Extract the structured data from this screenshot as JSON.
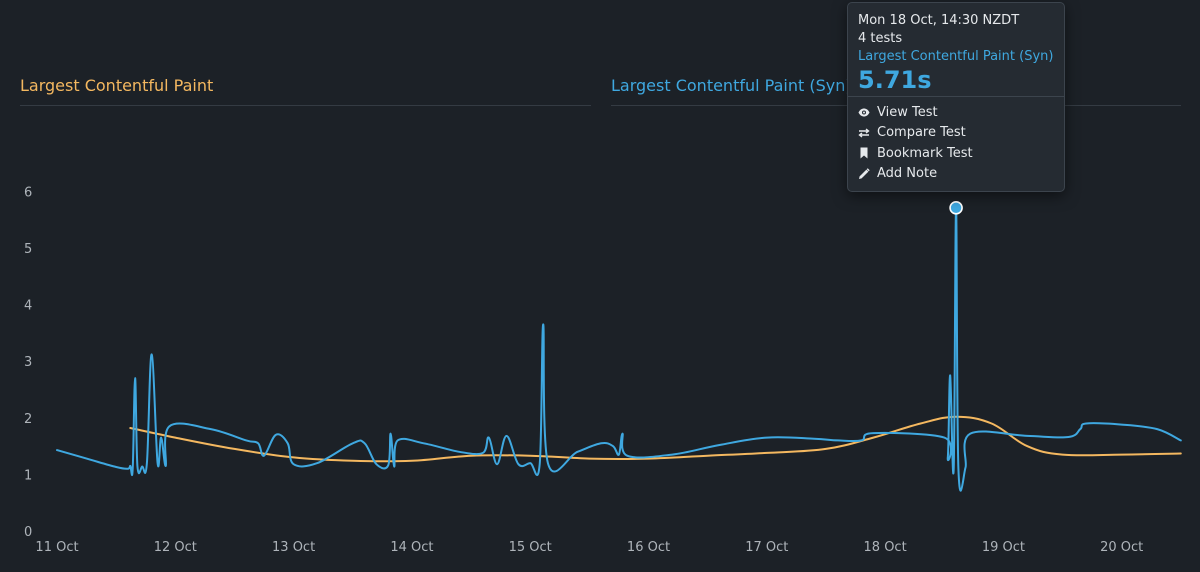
{
  "panels": {
    "left_title": "Largest Contentful Paint",
    "right_title": "Largest Contentful Paint (Syn)"
  },
  "tooltip": {
    "date": "Mon 18 Oct, 14:30 NZDT",
    "tests": "4 tests",
    "metric": "Largest Contentful Paint (Syn)",
    "value": "5.71s",
    "menu": {
      "view": "View Test",
      "compare": "Compare Test",
      "bookmark": "Bookmark Test",
      "note": "Add Note"
    }
  },
  "colors": {
    "synthetic": "#3fa8e0",
    "rum": "#f4b860",
    "grid": "#343b43"
  },
  "icons": {
    "view": "eye-icon",
    "compare": "swap-arrows-icon",
    "bookmark": "bookmark-icon",
    "note": "pencil-icon"
  },
  "chart_data": {
    "type": "line",
    "xlabel": "",
    "ylabel": "",
    "ylim": [
      0,
      7
    ],
    "yticks": [
      0,
      1,
      2,
      3,
      4,
      5,
      6
    ],
    "xticks": [
      "11 Oct",
      "12 Oct",
      "13 Oct",
      "14 Oct",
      "15 Oct",
      "16 Oct",
      "17 Oct",
      "18 Oct",
      "19 Oct",
      "20 Oct"
    ],
    "x_unit": "days since 11 Oct",
    "grid": false,
    "highlight": {
      "x": 7.6,
      "y": 5.71
    },
    "series": [
      {
        "name": "Largest Contentful Paint (Syn)",
        "color": "#3fa8e0",
        "points": [
          [
            0.0,
            1.43
          ],
          [
            0.25,
            1.28
          ],
          [
            0.5,
            1.13
          ],
          [
            0.6,
            1.1
          ],
          [
            0.62,
            1.15
          ],
          [
            0.64,
            1.1
          ],
          [
            0.66,
            2.7
          ],
          [
            0.68,
            1.15
          ],
          [
            0.72,
            1.14
          ],
          [
            0.76,
            1.2
          ],
          [
            0.8,
            3.12
          ],
          [
            0.85,
            1.2
          ],
          [
            0.88,
            1.65
          ],
          [
            0.92,
            1.15
          ],
          [
            0.95,
            1.85
          ],
          [
            1.3,
            1.8
          ],
          [
            1.6,
            1.6
          ],
          [
            1.7,
            1.55
          ],
          [
            1.75,
            1.33
          ],
          [
            1.85,
            1.7
          ],
          [
            1.95,
            1.55
          ],
          [
            2.0,
            1.18
          ],
          [
            2.2,
            1.2
          ],
          [
            2.5,
            1.55
          ],
          [
            2.6,
            1.55
          ],
          [
            2.7,
            1.18
          ],
          [
            2.8,
            1.16
          ],
          [
            2.82,
            1.72
          ],
          [
            2.85,
            1.14
          ],
          [
            2.88,
            1.6
          ],
          [
            3.1,
            1.55
          ],
          [
            3.4,
            1.4
          ],
          [
            3.6,
            1.38
          ],
          [
            3.65,
            1.65
          ],
          [
            3.72,
            1.18
          ],
          [
            3.8,
            1.68
          ],
          [
            3.9,
            1.18
          ],
          [
            4.0,
            1.2
          ],
          [
            4.08,
            1.18
          ],
          [
            4.11,
            3.65
          ],
          [
            4.15,
            1.2
          ],
          [
            4.4,
            1.4
          ],
          [
            4.6,
            1.55
          ],
          [
            4.7,
            1.5
          ],
          [
            4.75,
            1.35
          ],
          [
            4.78,
            1.72
          ],
          [
            4.82,
            1.33
          ],
          [
            5.2,
            1.35
          ],
          [
            5.6,
            1.52
          ],
          [
            6.0,
            1.65
          ],
          [
            6.4,
            1.63
          ],
          [
            6.6,
            1.6
          ],
          [
            6.8,
            1.6
          ],
          [
            6.9,
            1.73
          ],
          [
            7.5,
            1.65
          ],
          [
            7.53,
            1.3
          ],
          [
            7.55,
            2.75
          ],
          [
            7.58,
            1.1
          ],
          [
            7.6,
            5.71
          ],
          [
            7.62,
            1.1
          ],
          [
            7.68,
            1.12
          ],
          [
            7.72,
            1.72
          ],
          [
            8.2,
            1.68
          ],
          [
            8.55,
            1.66
          ],
          [
            8.65,
            1.8
          ],
          [
            8.7,
            1.9
          ],
          [
            9.0,
            1.88
          ],
          [
            9.3,
            1.8
          ],
          [
            9.5,
            1.6
          ]
        ]
      },
      {
        "name": "Largest Contentful Paint",
        "color": "#f4b860",
        "points": [
          [
            0.62,
            1.82
          ],
          [
            1.0,
            1.65
          ],
          [
            1.5,
            1.45
          ],
          [
            2.0,
            1.3
          ],
          [
            2.5,
            1.24
          ],
          [
            3.0,
            1.24
          ],
          [
            3.5,
            1.33
          ],
          [
            4.0,
            1.33
          ],
          [
            4.5,
            1.28
          ],
          [
            5.0,
            1.28
          ],
          [
            5.5,
            1.33
          ],
          [
            6.0,
            1.38
          ],
          [
            6.5,
            1.45
          ],
          [
            6.9,
            1.65
          ],
          [
            7.3,
            1.9
          ],
          [
            7.6,
            2.02
          ],
          [
            7.9,
            1.9
          ],
          [
            8.2,
            1.5
          ],
          [
            8.5,
            1.35
          ],
          [
            9.0,
            1.35
          ],
          [
            9.5,
            1.37
          ]
        ]
      }
    ]
  }
}
